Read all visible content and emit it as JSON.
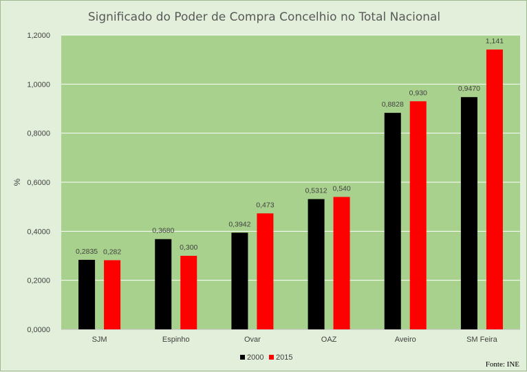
{
  "chart_data": {
    "type": "bar",
    "title": "Significado do Poder de Compra Concelhio no Total Nacional",
    "xlabel": "",
    "ylabel": "%",
    "ylim": [
      0,
      1.2
    ],
    "yticks": [
      0,
      0.2,
      0.4,
      0.6,
      0.8,
      1.0,
      1.2
    ],
    "ytick_labels": [
      "0,0000",
      "0,2000",
      "0,4000",
      "0,6000",
      "0,8000",
      "1,0000",
      "1,2000"
    ],
    "categories": [
      "SJM",
      "Espinho",
      "Ovar",
      "OAZ",
      "Aveiro",
      "SM Feira"
    ],
    "series": [
      {
        "name": "2000",
        "color": "#000000",
        "values": [
          0.2835,
          0.368,
          0.3942,
          0.5312,
          0.8828,
          0.947
        ],
        "labels": [
          "0,2835",
          "0,3680",
          "0,3942",
          "0,5312",
          "0,8828",
          "0,9470"
        ]
      },
      {
        "name": "2015",
        "color": "#ff0000",
        "values": [
          0.282,
          0.3,
          0.473,
          0.54,
          0.93,
          1.141
        ],
        "labels": [
          "0,282",
          "0,300",
          "0,473",
          "0,540",
          "0,930",
          "1,141"
        ]
      }
    ],
    "grid": true,
    "legend_position": "bottom-center",
    "plot_background": "#a9d18e",
    "source": "Fonte: INE"
  }
}
